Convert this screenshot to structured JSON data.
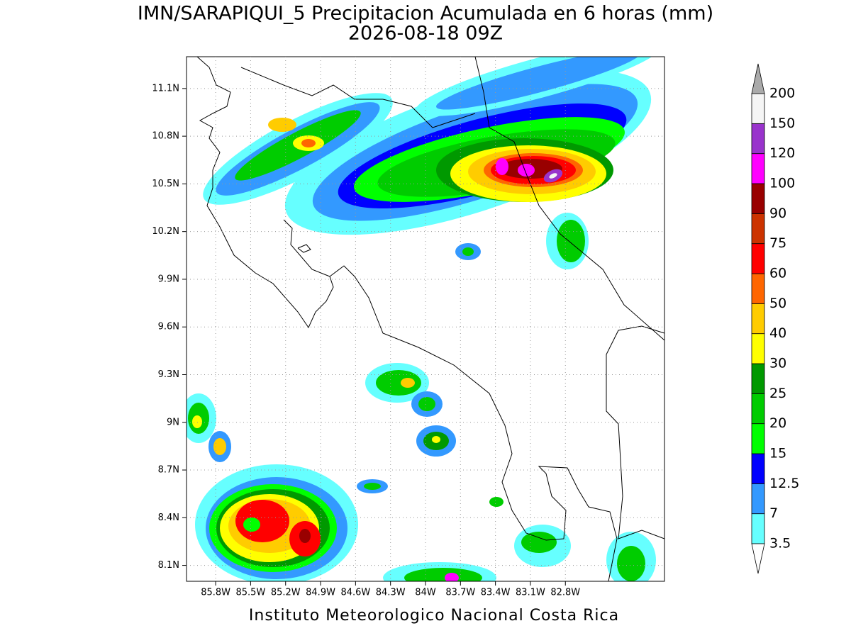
{
  "map": {
    "title": "IMN/SARAPIQUI_5 Precipitacion Acumulada en 6 horas (mm)",
    "subtitle": "2026-08-18 09Z",
    "footer": "Instituto Meteorologico Nacional Costa Rica",
    "xlim": [
      -86.05,
      -81.95
    ],
    "ylim": [
      8.0,
      11.3
    ],
    "xticks": [
      {
        "value": -85.8,
        "label": "85.8W"
      },
      {
        "value": -85.5,
        "label": "85.5W"
      },
      {
        "value": -85.2,
        "label": "85.2W"
      },
      {
        "value": -84.9,
        "label": "84.9W"
      },
      {
        "value": -84.6,
        "label": "84.6W"
      },
      {
        "value": -84.3,
        "label": "84.3W"
      },
      {
        "value": -84.0,
        "label": "84W"
      },
      {
        "value": -83.7,
        "label": "83.7W"
      },
      {
        "value": -83.4,
        "label": "83.4W"
      },
      {
        "value": -83.1,
        "label": "83.1W"
      },
      {
        "value": -82.8,
        "label": "82.8W"
      }
    ],
    "yticks": [
      {
        "value": 11.1,
        "label": "11.1N"
      },
      {
        "value": 10.8,
        "label": "10.8N"
      },
      {
        "value": 10.5,
        "label": "10.5N"
      },
      {
        "value": 10.2,
        "label": "10.2N"
      },
      {
        "value": 9.9,
        "label": "9.9N"
      },
      {
        "value": 9.6,
        "label": "9.6N"
      },
      {
        "value": 9.3,
        "label": "9.3N"
      },
      {
        "value": 9.0,
        "label": "9N"
      },
      {
        "value": 8.7,
        "label": "8.7N"
      },
      {
        "value": 8.4,
        "label": "8.4N"
      },
      {
        "value": 8.1,
        "label": "8.1N"
      }
    ],
    "grid": true,
    "colorbar": {
      "levels": [
        3.5,
        7,
        12.5,
        15,
        20,
        25,
        30,
        40,
        50,
        60,
        75,
        90,
        100,
        120,
        150,
        200
      ],
      "colors": [
        "#66ffff",
        "#3399ff",
        "#0000ff",
        "#00ff00",
        "#00cc00",
        "#009900",
        "#ffff00",
        "#ffcc00",
        "#ff6600",
        "#ff0000",
        "#cc3300",
        "#990000",
        "#ff00ff",
        "#9933cc",
        "#f5f5f5"
      ],
      "under_color": "#ffffff",
      "over_color": "#aaaaaa"
    }
  }
}
